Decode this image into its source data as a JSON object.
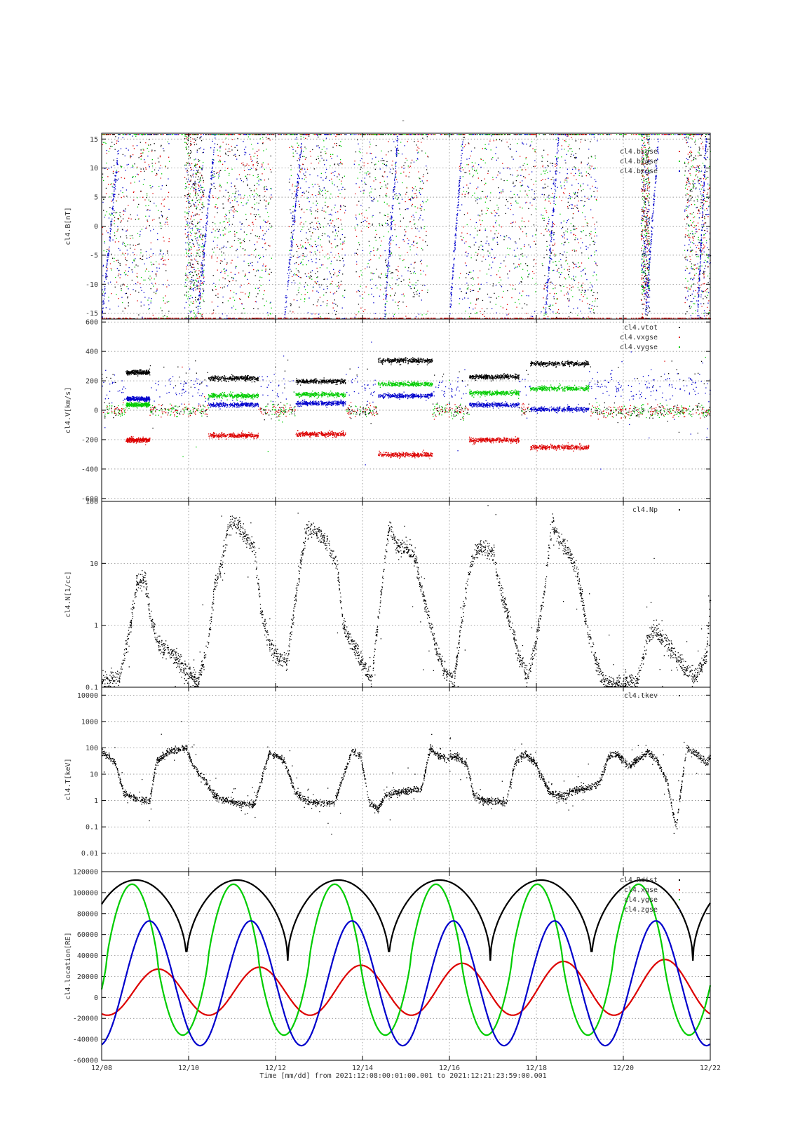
{
  "figure": {
    "title_mark": "-",
    "x_axis_label": "Time [mm/dd]  from 2021:12:08:00:01:00.001  to  2021:12:21:23:59:00.001"
  },
  "chart_data": [
    {
      "type": "scatter",
      "ylabel": "cl4.B[nT]",
      "yscale": "linear",
      "ylim": [
        -16,
        16
      ],
      "yticks": [
        -15,
        -10,
        -5,
        0,
        5,
        10,
        15
      ],
      "ytick_labels": [
        "-15",
        "-10",
        "-5",
        "0",
        "5",
        "10",
        "15"
      ],
      "x_range_days": [
        0,
        14
      ],
      "xticks_days": [
        0,
        2,
        4,
        6,
        8,
        10,
        12,
        14
      ],
      "xtick_labels": [
        "12/08",
        "12/10",
        "12/12",
        "12/14",
        "12/16",
        "12/18",
        "12/20",
        "12/22"
      ],
      "grid": true,
      "legend_position": "top-right",
      "legend": [
        "",
        "cl4.bxgse",
        "cl4.bygse",
        "cl4.bzgse"
      ],
      "series": [
        {
          "color": "#000000"
        },
        {
          "color": "#dd0000"
        },
        {
          "color": "#00cc00"
        },
        {
          "color": "#0000cc"
        }
      ],
      "note": "Dense scatter, values saturating at the +/-15 nT plot limits during magnetosheath intervals."
    },
    {
      "type": "scatter",
      "ylabel": "cl4.V[km/s]",
      "yscale": "linear",
      "ylim": [
        -620,
        620
      ],
      "yticks": [
        -600,
        -400,
        -200,
        0,
        200,
        400,
        600
      ],
      "ytick_labels": [
        "-600",
        "-400",
        "-200",
        "0",
        "200",
        "400",
        "600"
      ],
      "grid": true,
      "legend_position": "top-right",
      "legend": [
        "cl4.vtot",
        "cl4.vxgse",
        "cl4.vygse",
        ""
      ],
      "series": [
        {
          "name": "cl4.vtot",
          "color": "#000000"
        },
        {
          "name": "cl4.vxgse",
          "color": "#dd0000"
        },
        {
          "name": "cl4.vygse",
          "color": "#00cc00"
        },
        {
          "color": "#0000cc"
        }
      ],
      "intervals_days": [
        {
          "start": 0.55,
          "end": 1.1,
          "vtot": 260,
          "vx": -200,
          "vy": 40,
          "vz": 80
        },
        {
          "start": 2.45,
          "end": 3.6,
          "vtot": 220,
          "vx": -170,
          "vy": 100,
          "vz": 40
        },
        {
          "start": 4.45,
          "end": 5.6,
          "vtot": 200,
          "vx": -160,
          "vy": 110,
          "vz": 50
        },
        {
          "start": 6.35,
          "end": 7.6,
          "vtot": 340,
          "vx": -300,
          "vy": 180,
          "vz": 100
        },
        {
          "start": 8.45,
          "end": 9.6,
          "vtot": 230,
          "vx": -200,
          "vy": 120,
          "vz": 40
        },
        {
          "start": 9.85,
          "end": 11.2,
          "vtot": 320,
          "vx": -250,
          "vy": 150,
          "vz": 10
        }
      ]
    },
    {
      "type": "scatter",
      "ylabel": "cl4.N[1/cc]",
      "yscale": "log",
      "ylim": [
        0.1,
        100
      ],
      "yticks": [
        0.1,
        1,
        10,
        100
      ],
      "ytick_labels": [
        "0.1",
        "1",
        "10",
        "100"
      ],
      "grid": true,
      "legend_position": "top-right",
      "legend": [
        "cl4.Np"
      ],
      "series": [
        {
          "name": "cl4.Np",
          "color": "#000000"
        }
      ],
      "profile_days": [
        [
          0.0,
          0.13
        ],
        [
          0.4,
          0.15
        ],
        [
          0.6,
          0.6
        ],
        [
          0.8,
          5
        ],
        [
          1.0,
          5.5
        ],
        [
          1.1,
          1.5
        ],
        [
          1.3,
          0.5
        ],
        [
          1.6,
          0.35
        ],
        [
          1.9,
          0.2
        ],
        [
          2.2,
          0.12
        ],
        [
          2.45,
          0.6
        ],
        [
          2.6,
          5
        ],
        [
          2.75,
          10
        ],
        [
          2.9,
          40
        ],
        [
          3.1,
          45
        ],
        [
          3.35,
          22
        ],
        [
          3.5,
          18
        ],
        [
          3.65,
          2
        ],
        [
          3.85,
          0.5
        ],
        [
          4.05,
          0.3
        ],
        [
          4.25,
          0.25
        ],
        [
          4.5,
          5
        ],
        [
          4.7,
          35
        ],
        [
          4.9,
          35
        ],
        [
          5.1,
          25
        ],
        [
          5.4,
          10
        ],
        [
          5.55,
          1
        ],
        [
          5.75,
          0.5
        ],
        [
          6.0,
          0.25
        ],
        [
          6.2,
          0.13
        ],
        [
          6.45,
          5
        ],
        [
          6.6,
          40
        ],
        [
          6.8,
          18
        ],
        [
          7.0,
          18
        ],
        [
          7.2,
          12
        ],
        [
          7.45,
          2
        ],
        [
          7.65,
          0.5
        ],
        [
          7.85,
          0.2
        ],
        [
          8.1,
          0.13
        ],
        [
          8.35,
          3
        ],
        [
          8.55,
          15
        ],
        [
          8.75,
          18
        ],
        [
          9.0,
          15
        ],
        [
          9.2,
          3
        ],
        [
          9.45,
          0.8
        ],
        [
          9.6,
          0.3
        ],
        [
          9.8,
          0.15
        ],
        [
          10.0,
          0.6
        ],
        [
          10.2,
          5
        ],
        [
          10.35,
          45
        ],
        [
          10.55,
          22
        ],
        [
          10.75,
          15
        ],
        [
          10.95,
          6
        ],
        [
          11.15,
          1
        ],
        [
          11.35,
          0.3
        ],
        [
          11.55,
          0.12
        ],
        [
          11.9,
          0.12
        ],
        [
          12.3,
          0.13
        ],
        [
          12.55,
          0.6
        ],
        [
          12.7,
          0.9
        ],
        [
          13.0,
          0.5
        ],
        [
          13.4,
          0.2
        ],
        [
          13.65,
          0.15
        ],
        [
          13.9,
          0.3
        ],
        [
          14.0,
          3
        ]
      ]
    },
    {
      "type": "scatter",
      "ylabel": "cl4.T[keV]",
      "yscale": "log",
      "ylim": [
        0.002,
        20000
      ],
      "yticks": [
        0.01,
        0.1,
        1,
        10,
        100,
        1000,
        10000
      ],
      "ytick_labels": [
        "0.01",
        "0.1",
        "1",
        "10",
        "100",
        "1000",
        "10000"
      ],
      "grid": true,
      "legend_position": "top-right",
      "legend": [
        "cl4.tkev"
      ],
      "series": [
        {
          "name": "cl4.tkev",
          "color": "#000000"
        }
      ],
      "profile_days": [
        [
          0.0,
          70
        ],
        [
          0.3,
          30
        ],
        [
          0.5,
          2
        ],
        [
          0.8,
          1.2
        ],
        [
          1.1,
          1
        ],
        [
          1.25,
          30
        ],
        [
          1.5,
          70
        ],
        [
          1.8,
          90
        ],
        [
          1.95,
          100
        ],
        [
          2.1,
          20
        ],
        [
          2.4,
          5
        ],
        [
          2.6,
          1.5
        ],
        [
          2.9,
          1
        ],
        [
          3.2,
          0.8
        ],
        [
          3.5,
          0.7
        ],
        [
          3.65,
          5
        ],
        [
          3.85,
          70
        ],
        [
          4.05,
          50
        ],
        [
          4.2,
          30
        ],
        [
          4.45,
          2
        ],
        [
          4.7,
          1
        ],
        [
          5.0,
          0.8
        ],
        [
          5.35,
          0.8
        ],
        [
          5.5,
          5
        ],
        [
          5.75,
          80
        ],
        [
          5.95,
          50
        ],
        [
          6.15,
          0.8
        ],
        [
          6.35,
          0.5
        ],
        [
          6.5,
          1.5
        ],
        [
          6.8,
          2
        ],
        [
          7.1,
          2.5
        ],
        [
          7.35,
          3
        ],
        [
          7.55,
          100
        ],
        [
          7.75,
          50
        ],
        [
          7.95,
          40
        ],
        [
          8.15,
          50
        ],
        [
          8.4,
          25
        ],
        [
          8.55,
          1.5
        ],
        [
          8.85,
          1
        ],
        [
          9.1,
          1
        ],
        [
          9.3,
          0.9
        ],
        [
          9.5,
          30
        ],
        [
          9.75,
          60
        ],
        [
          9.95,
          30
        ],
        [
          10.15,
          6
        ],
        [
          10.3,
          2
        ],
        [
          10.6,
          1.5
        ],
        [
          10.9,
          2.5
        ],
        [
          11.2,
          3
        ],
        [
          11.45,
          5
        ],
        [
          11.65,
          50
        ],
        [
          11.85,
          60
        ],
        [
          12.1,
          20
        ],
        [
          12.35,
          40
        ],
        [
          12.55,
          70
        ],
        [
          12.75,
          40
        ],
        [
          13.0,
          5
        ],
        [
          13.2,
          0.1
        ],
        [
          13.45,
          100
        ],
        [
          13.7,
          60
        ],
        [
          13.9,
          30
        ],
        [
          14.0,
          50
        ]
      ]
    },
    {
      "type": "line",
      "ylabel": "cl4.location[RE]",
      "yscale": "linear",
      "ylim": [
        -60000,
        120000
      ],
      "yticks": [
        -60000,
        -40000,
        -20000,
        0,
        20000,
        40000,
        60000,
        80000,
        100000,
        120000
      ],
      "ytick_labels": [
        "-60000",
        "-40000",
        "-20000",
        "0",
        "20000",
        "40000",
        "60000",
        "80000",
        "100000",
        "120000"
      ],
      "grid": true,
      "legend_position": "top-right",
      "legend": [
        "cl4.Rdist",
        "cl4.xgse",
        "cl4.ygse",
        "cl4.zgse"
      ],
      "orbit_period_days": 2.33,
      "series": [
        {
          "name": "cl4.Rdist",
          "color": "#000000",
          "min": 35000,
          "max": 112000,
          "perigee_days": [
            1.95,
            4.28,
            6.61,
            8.94,
            11.27,
            13.6
          ]
        },
        {
          "name": "cl4.xgse",
          "color": "#dd0000",
          "min": -17000,
          "max_range": [
            26000,
            37000
          ],
          "peak_days": [
            1.3,
            3.6,
            5.95,
            8.25,
            10.6,
            12.95
          ]
        },
        {
          "name": "cl4.ygse",
          "color": "#00cc00",
          "min": -36000,
          "max": 108000,
          "peak_days": [
            0.7,
            3.0,
            5.35,
            7.65,
            9.95,
            12.3
          ]
        },
        {
          "name": "cl4.zgse",
          "color": "#0000cc",
          "min": -46000,
          "max": 73000,
          "peak_days": [
            1.1,
            3.4,
            5.75,
            8.05,
            10.4,
            12.7
          ]
        }
      ]
    }
  ]
}
